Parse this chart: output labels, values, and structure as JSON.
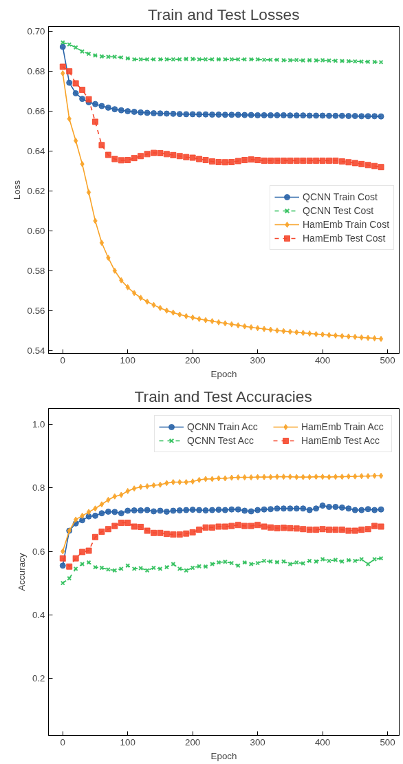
{
  "chart_data": [
    {
      "type": "line",
      "title": "Train and Test Losses",
      "xlabel": "Epoch",
      "ylabel": "Loss",
      "xlim": [
        -22,
        518
      ],
      "ylim": [
        0.5385,
        0.7025
      ],
      "xticks": [
        0,
        100,
        200,
        300,
        400,
        500
      ],
      "yticks": [
        {
          "value": 0.54,
          "label": "0.54"
        },
        {
          "value": 0.56,
          "label": "0.56"
        },
        {
          "value": 0.58,
          "label": "0.58"
        },
        {
          "value": 0.6,
          "label": "0.60"
        },
        {
          "value": 0.62,
          "label": "0.62"
        },
        {
          "value": 0.64,
          "label": "0.64"
        },
        {
          "value": 0.66,
          "label": "0.66"
        },
        {
          "value": 0.68,
          "label": "0.68"
        },
        {
          "value": 0.7,
          "label": "0.70"
        }
      ],
      "grid": false,
      "legend": "right",
      "x": [
        0,
        10,
        20,
        30,
        40,
        50,
        60,
        70,
        80,
        90,
        100,
        110,
        120,
        130,
        140,
        150,
        160,
        170,
        180,
        190,
        200,
        210,
        220,
        230,
        240,
        250,
        260,
        270,
        280,
        290,
        300,
        310,
        320,
        330,
        340,
        350,
        360,
        370,
        380,
        390,
        400,
        410,
        420,
        430,
        440,
        450,
        460,
        470,
        480,
        490
      ],
      "series": [
        {
          "name": "QCNN Train Cost",
          "color": "#2a64a8",
          "marker": "circle",
          "line_style": "solid",
          "values": [
            0.6923,
            0.6743,
            0.669,
            0.6662,
            0.6645,
            0.6636,
            0.6626,
            0.6618,
            0.661,
            0.6605,
            0.66,
            0.6597,
            0.6594,
            0.6592,
            0.659,
            0.6589,
            0.6588,
            0.6587,
            0.6586,
            0.6585,
            0.6585,
            0.6584,
            0.6584,
            0.6583,
            0.6583,
            0.6582,
            0.6582,
            0.6582,
            0.6581,
            0.6581,
            0.658,
            0.658,
            0.658,
            0.658,
            0.658,
            0.6579,
            0.6579,
            0.6579,
            0.6578,
            0.6578,
            0.6578,
            0.6577,
            0.6577,
            0.6577,
            0.6576,
            0.6576,
            0.6575,
            0.6575,
            0.6575,
            0.6574
          ]
        },
        {
          "name": "QCNN Test Cost",
          "color": "#2dbf5a",
          "marker": "cross",
          "line_style": "dashed",
          "values": [
            0.6945,
            0.6935,
            0.692,
            0.69,
            0.6888,
            0.688,
            0.6875,
            0.6873,
            0.6873,
            0.687,
            0.6865,
            0.686,
            0.686,
            0.686,
            0.686,
            0.686,
            0.686,
            0.686,
            0.686,
            0.6862,
            0.6862,
            0.686,
            0.686,
            0.686,
            0.686,
            0.686,
            0.686,
            0.686,
            0.686,
            0.686,
            0.686,
            0.6858,
            0.6858,
            0.6858,
            0.6856,
            0.6856,
            0.6857,
            0.6855,
            0.6856,
            0.6855,
            0.6856,
            0.6854,
            0.6853,
            0.6852,
            0.6851,
            0.685,
            0.6849,
            0.6848,
            0.6847,
            0.6846
          ]
        },
        {
          "name": "HamEmb Train Cost",
          "color": "#f8a328",
          "marker": "diamond",
          "line_style": "solid",
          "values": [
            0.679,
            0.6562,
            0.6452,
            0.6335,
            0.6193,
            0.605,
            0.594,
            0.5865,
            0.58,
            0.5752,
            0.5717,
            0.5688,
            0.5664,
            0.5645,
            0.5628,
            0.5613,
            0.56,
            0.559,
            0.558,
            0.5572,
            0.5565,
            0.5558,
            0.5552,
            0.5547,
            0.5541,
            0.5536,
            0.5531,
            0.5526,
            0.5521,
            0.5516,
            0.5512,
            0.5508,
            0.5504,
            0.55,
            0.5497,
            0.5494,
            0.5491,
            0.5488,
            0.5485,
            0.5482,
            0.548,
            0.5477,
            0.5475,
            0.5472,
            0.547,
            0.5468,
            0.5465,
            0.5463,
            0.5461,
            0.5458
          ]
        },
        {
          "name": "HamEmb Test Cost",
          "color": "#f5482e",
          "marker": "square",
          "line_style": "dashed",
          "values": [
            0.6823,
            0.68,
            0.674,
            0.6707,
            0.666,
            0.6547,
            0.643,
            0.6381,
            0.636,
            0.6354,
            0.6355,
            0.6365,
            0.6375,
            0.6385,
            0.6391,
            0.639,
            0.6385,
            0.638,
            0.6375,
            0.637,
            0.6367,
            0.636,
            0.6355,
            0.6348,
            0.6345,
            0.6344,
            0.6345,
            0.635,
            0.6355,
            0.6358,
            0.6355,
            0.6352,
            0.6352,
            0.6352,
            0.6352,
            0.6352,
            0.6352,
            0.6352,
            0.6352,
            0.6352,
            0.6352,
            0.6352,
            0.6352,
            0.6348,
            0.6344,
            0.634,
            0.6335,
            0.633,
            0.6325,
            0.632
          ]
        }
      ]
    },
    {
      "type": "line",
      "title": "Train and Test Accuracies",
      "xlabel": "Epoch",
      "ylabel": "Accuracy",
      "xlim": [
        -22,
        518
      ],
      "ylim": [
        0.02,
        1.05
      ],
      "xticks": [
        0,
        100,
        200,
        300,
        400,
        500
      ],
      "yticks": [
        0.2,
        0.4,
        0.6,
        0.8,
        {
          "value": 1.0,
          "label": "1.0"
        }
      ],
      "grid": false,
      "legend": "top right",
      "x": [
        0,
        10,
        20,
        30,
        40,
        50,
        60,
        70,
        80,
        90,
        100,
        110,
        120,
        130,
        140,
        150,
        160,
        170,
        180,
        190,
        200,
        210,
        220,
        230,
        240,
        250,
        260,
        270,
        280,
        290,
        300,
        310,
        320,
        330,
        340,
        350,
        360,
        370,
        380,
        390,
        400,
        410,
        420,
        430,
        440,
        450,
        460,
        470,
        480,
        490
      ],
      "series": [
        {
          "name": "QCNN Train Acc",
          "color": "#2a64a8",
          "marker": "circle",
          "line_style": "solid",
          "values": [
            0.555,
            0.665,
            0.688,
            0.698,
            0.71,
            0.712,
            0.72,
            0.725,
            0.724,
            0.72,
            0.728,
            0.729,
            0.729,
            0.73,
            0.726,
            0.728,
            0.725,
            0.728,
            0.729,
            0.73,
            0.731,
            0.73,
            0.729,
            0.73,
            0.731,
            0.73,
            0.732,
            0.732,
            0.728,
            0.726,
            0.73,
            0.732,
            0.733,
            0.735,
            0.735,
            0.735,
            0.735,
            0.735,
            0.73,
            0.735,
            0.744,
            0.74,
            0.74,
            0.738,
            0.735,
            0.73,
            0.73,
            0.733,
            0.73,
            0.732
          ]
        },
        {
          "name": "QCNN Test Acc",
          "color": "#2dbf5a",
          "marker": "cross",
          "line_style": "dashed",
          "values": [
            0.5,
            0.515,
            0.545,
            0.56,
            0.565,
            0.55,
            0.548,
            0.543,
            0.54,
            0.545,
            0.555,
            0.545,
            0.547,
            0.54,
            0.548,
            0.545,
            0.55,
            0.56,
            0.545,
            0.54,
            0.548,
            0.553,
            0.552,
            0.56,
            0.565,
            0.567,
            0.563,
            0.555,
            0.565,
            0.56,
            0.563,
            0.57,
            0.568,
            0.566,
            0.568,
            0.56,
            0.565,
            0.562,
            0.57,
            0.568,
            0.575,
            0.57,
            0.573,
            0.568,
            0.572,
            0.57,
            0.575,
            0.56,
            0.575,
            0.578
          ]
        },
        {
          "name": "HamEmb Train Acc",
          "color": "#f8a328",
          "marker": "diamond",
          "line_style": "solid",
          "values": [
            0.6,
            0.665,
            0.7,
            0.712,
            0.724,
            0.735,
            0.748,
            0.762,
            0.773,
            0.778,
            0.79,
            0.798,
            0.803,
            0.805,
            0.808,
            0.81,
            0.815,
            0.818,
            0.818,
            0.818,
            0.82,
            0.825,
            0.828,
            0.828,
            0.83,
            0.83,
            0.832,
            0.833,
            0.833,
            0.833,
            0.834,
            0.834,
            0.834,
            0.835,
            0.835,
            0.835,
            0.834,
            0.834,
            0.834,
            0.835,
            0.835,
            0.834,
            0.835,
            0.835,
            0.836,
            0.836,
            0.837,
            0.837,
            0.838,
            0.838
          ]
        },
        {
          "name": "HamEmb Test Acc",
          "color": "#f5482e",
          "marker": "square",
          "line_style": "dashed",
          "values": [
            0.578,
            0.552,
            0.578,
            0.598,
            0.602,
            0.645,
            0.662,
            0.67,
            0.68,
            0.69,
            0.69,
            0.678,
            0.677,
            0.665,
            0.658,
            0.658,
            0.655,
            0.653,
            0.653,
            0.656,
            0.66,
            0.668,
            0.675,
            0.675,
            0.678,
            0.678,
            0.68,
            0.683,
            0.68,
            0.68,
            0.683,
            0.678,
            0.675,
            0.673,
            0.674,
            0.673,
            0.672,
            0.67,
            0.668,
            0.668,
            0.67,
            0.668,
            0.668,
            0.668,
            0.665,
            0.665,
            0.668,
            0.67,
            0.68,
            0.678
          ]
        }
      ]
    }
  ]
}
